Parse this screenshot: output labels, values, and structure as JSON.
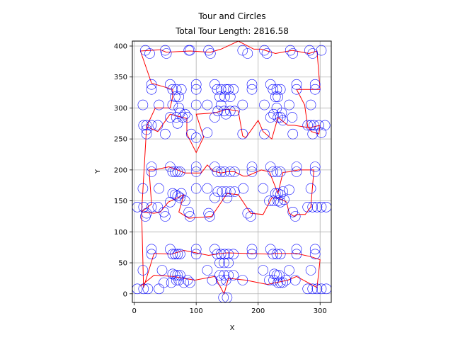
{
  "chart_data": {
    "type": "scatter",
    "title": "Tour and Circles",
    "subtitle": "Total Tour Length: 2816.58",
    "xlabel": "X",
    "ylabel": "Y",
    "xlim": [
      -3,
      318
    ],
    "ylim": [
      -14,
      408
    ],
    "xticks": [
      0,
      100,
      200,
      300
    ],
    "yticks": [
      0,
      50,
      100,
      150,
      200,
      250,
      300,
      350,
      400
    ],
    "grid": true,
    "colors": {
      "circles": "#0000ff",
      "tour": "#ff0000",
      "grid": "#b0b0b0"
    },
    "circles": [
      [
        18,
        393
      ],
      [
        25,
        388
      ],
      [
        50,
        393
      ],
      [
        52,
        388
      ],
      [
        88,
        393
      ],
      [
        90,
        393
      ],
      [
        120,
        393
      ],
      [
        123,
        388
      ],
      [
        175,
        393
      ],
      [
        183,
        388
      ],
      [
        210,
        393
      ],
      [
        214,
        388
      ],
      [
        252,
        393
      ],
      [
        256,
        388
      ],
      [
        283,
        393
      ],
      [
        288,
        388
      ],
      [
        302,
        393
      ],
      [
        28,
        338
      ],
      [
        28,
        330
      ],
      [
        58,
        338
      ],
      [
        62,
        330
      ],
      [
        68,
        330
      ],
      [
        72,
        318
      ],
      [
        76,
        330
      ],
      [
        66,
        318
      ],
      [
        100,
        338
      ],
      [
        100,
        330
      ],
      [
        130,
        338
      ],
      [
        134,
        330
      ],
      [
        140,
        330
      ],
      [
        146,
        318
      ],
      [
        148,
        330
      ],
      [
        138,
        318
      ],
      [
        152,
        330
      ],
      [
        160,
        330
      ],
      [
        155,
        318
      ],
      [
        190,
        338
      ],
      [
        190,
        330
      ],
      [
        220,
        338
      ],
      [
        224,
        330
      ],
      [
        228,
        318
      ],
      [
        230,
        330
      ],
      [
        236,
        330
      ],
      [
        232,
        318
      ],
      [
        262,
        338
      ],
      [
        262,
        330
      ],
      [
        292,
        338
      ],
      [
        292,
        330
      ],
      [
        14,
        305
      ],
      [
        15,
        272
      ],
      [
        20,
        272
      ],
      [
        20,
        265
      ],
      [
        28,
        272
      ],
      [
        20,
        258
      ],
      [
        40,
        305
      ],
      [
        38,
        272
      ],
      [
        50,
        258
      ],
      [
        58,
        285
      ],
      [
        62,
        305
      ],
      [
        68,
        285
      ],
      [
        72,
        300
      ],
      [
        74,
        292
      ],
      [
        78,
        285
      ],
      [
        82,
        290
      ],
      [
        70,
        275
      ],
      [
        86,
        285
      ],
      [
        100,
        305
      ],
      [
        92,
        258
      ],
      [
        100,
        252
      ],
      [
        118,
        305
      ],
      [
        118,
        260
      ],
      [
        130,
        285
      ],
      [
        140,
        305
      ],
      [
        148,
        290
      ],
      [
        135,
        295
      ],
      [
        145,
        295
      ],
      [
        155,
        295
      ],
      [
        162,
        295
      ],
      [
        175,
        305
      ],
      [
        175,
        258
      ],
      [
        210,
        305
      ],
      [
        210,
        258
      ],
      [
        220,
        285
      ],
      [
        225,
        290
      ],
      [
        230,
        300
      ],
      [
        232,
        285
      ],
      [
        236,
        285
      ],
      [
        240,
        280
      ],
      [
        238,
        292
      ],
      [
        250,
        305
      ],
      [
        255,
        285
      ],
      [
        256,
        258
      ],
      [
        280,
        272
      ],
      [
        285,
        272
      ],
      [
        285,
        305
      ],
      [
        288,
        258
      ],
      [
        290,
        272
      ],
      [
        298,
        272
      ],
      [
        302,
        260
      ],
      [
        308,
        272
      ],
      [
        28,
        205
      ],
      [
        28,
        197
      ],
      [
        58,
        205
      ],
      [
        62,
        197
      ],
      [
        66,
        197
      ],
      [
        70,
        197
      ],
      [
        74,
        197
      ],
      [
        62,
        162
      ],
      [
        66,
        160
      ],
      [
        70,
        158
      ],
      [
        74,
        155
      ],
      [
        76,
        162
      ],
      [
        82,
        150
      ],
      [
        100,
        205
      ],
      [
        100,
        197
      ],
      [
        130,
        205
      ],
      [
        134,
        197
      ],
      [
        140,
        197
      ],
      [
        146,
        197
      ],
      [
        155,
        197
      ],
      [
        162,
        197
      ],
      [
        135,
        165
      ],
      [
        142,
        165
      ],
      [
        148,
        165
      ],
      [
        155,
        165
      ],
      [
        162,
        165
      ],
      [
        190,
        205
      ],
      [
        190,
        197
      ],
      [
        220,
        205
      ],
      [
        224,
        197
      ],
      [
        230,
        197
      ],
      [
        236,
        197
      ],
      [
        228,
        162
      ],
      [
        232,
        162
      ],
      [
        236,
        160
      ],
      [
        240,
        165
      ],
      [
        242,
        152
      ],
      [
        262,
        205
      ],
      [
        262,
        197
      ],
      [
        292,
        205
      ],
      [
        292,
        197
      ],
      [
        14,
        170
      ],
      [
        5,
        140
      ],
      [
        15,
        140
      ],
      [
        20,
        130
      ],
      [
        28,
        140
      ],
      [
        38,
        140
      ],
      [
        48,
        132
      ],
      [
        58,
        148
      ],
      [
        50,
        125
      ],
      [
        18,
        125
      ],
      [
        40,
        170
      ],
      [
        88,
        132
      ],
      [
        90,
        125
      ],
      [
        100,
        170
      ],
      [
        118,
        170
      ],
      [
        120,
        130
      ],
      [
        122,
        125
      ],
      [
        130,
        155
      ],
      [
        150,
        155
      ],
      [
        176,
        170
      ],
      [
        183,
        130
      ],
      [
        188,
        125
      ],
      [
        208,
        170
      ],
      [
        218,
        150
      ],
      [
        225,
        150
      ],
      [
        232,
        150
      ],
      [
        236,
        148
      ],
      [
        250,
        168
      ],
      [
        256,
        132
      ],
      [
        260,
        125
      ],
      [
        280,
        140
      ],
      [
        285,
        170
      ],
      [
        288,
        140
      ],
      [
        295,
        140
      ],
      [
        302,
        140
      ],
      [
        310,
        140
      ],
      [
        28,
        72
      ],
      [
        28,
        64
      ],
      [
        58,
        72
      ],
      [
        62,
        64
      ],
      [
        66,
        64
      ],
      [
        70,
        64
      ],
      [
        74,
        64
      ],
      [
        62,
        32
      ],
      [
        66,
        30
      ],
      [
        70,
        30
      ],
      [
        74,
        30
      ],
      [
        100,
        72
      ],
      [
        100,
        64
      ],
      [
        130,
        72
      ],
      [
        134,
        64
      ],
      [
        140,
        64
      ],
      [
        146,
        64
      ],
      [
        152,
        64
      ],
      [
        160,
        64
      ],
      [
        138,
        50
      ],
      [
        145,
        50
      ],
      [
        152,
        50
      ],
      [
        138,
        30
      ],
      [
        145,
        30
      ],
      [
        152,
        30
      ],
      [
        160,
        30
      ],
      [
        190,
        72
      ],
      [
        190,
        64
      ],
      [
        220,
        72
      ],
      [
        224,
        64
      ],
      [
        230,
        64
      ],
      [
        236,
        64
      ],
      [
        226,
        32
      ],
      [
        230,
        30
      ],
      [
        234,
        30
      ],
      [
        262,
        72
      ],
      [
        262,
        64
      ],
      [
        292,
        72
      ],
      [
        292,
        64
      ],
      [
        14,
        38
      ],
      [
        5,
        8
      ],
      [
        15,
        8
      ],
      [
        22,
        8
      ],
      [
        40,
        8
      ],
      [
        45,
        38
      ],
      [
        48,
        18
      ],
      [
        60,
        18
      ],
      [
        68,
        22
      ],
      [
        72,
        22
      ],
      [
        80,
        18
      ],
      [
        86,
        22
      ],
      [
        90,
        18
      ],
      [
        118,
        38
      ],
      [
        126,
        22
      ],
      [
        140,
        22
      ],
      [
        148,
        22
      ],
      [
        175,
        22
      ],
      [
        150,
        -6
      ],
      [
        144,
        -6
      ],
      [
        208,
        38
      ],
      [
        218,
        22
      ],
      [
        225,
        22
      ],
      [
        232,
        18
      ],
      [
        236,
        18
      ],
      [
        240,
        18
      ],
      [
        245,
        22
      ],
      [
        250,
        38
      ],
      [
        260,
        22
      ],
      [
        280,
        8
      ],
      [
        285,
        38
      ],
      [
        288,
        8
      ],
      [
        295,
        8
      ],
      [
        302,
        8
      ],
      [
        310,
        8
      ]
    ],
    "tour": [
      [
        10,
        12
      ],
      [
        32,
        30
      ],
      [
        62,
        28
      ],
      [
        98,
        22
      ],
      [
        130,
        28
      ],
      [
        145,
        0
      ],
      [
        152,
        25
      ],
      [
        180,
        22
      ],
      [
        215,
        15
      ],
      [
        248,
        22
      ],
      [
        262,
        28
      ],
      [
        295,
        10
      ],
      [
        300,
        55
      ],
      [
        285,
        60
      ],
      [
        262,
        65
      ],
      [
        230,
        65
      ],
      [
        218,
        64
      ],
      [
        150,
        66
      ],
      [
        140,
        65
      ],
      [
        120,
        62
      ],
      [
        80,
        70
      ],
      [
        60,
        64
      ],
      [
        32,
        65
      ],
      [
        15,
        10
      ],
      [
        12,
        132
      ],
      [
        32,
        130
      ],
      [
        42,
        132
      ],
      [
        55,
        148
      ],
      [
        80,
        160
      ],
      [
        72,
        132
      ],
      [
        88,
        122
      ],
      [
        125,
        125
      ],
      [
        150,
        162
      ],
      [
        168,
        160
      ],
      [
        188,
        130
      ],
      [
        208,
        128
      ],
      [
        222,
        155
      ],
      [
        232,
        155
      ],
      [
        246,
        148
      ],
      [
        250,
        130
      ],
      [
        258,
        125
      ],
      [
        262,
        128
      ],
      [
        276,
        128
      ],
      [
        285,
        140
      ],
      [
        290,
        200
      ],
      [
        265,
        200
      ],
      [
        250,
        197
      ],
      [
        240,
        196
      ],
      [
        232,
        162
      ],
      [
        218,
        197
      ],
      [
        205,
        200
      ],
      [
        182,
        190
      ],
      [
        176,
        190
      ],
      [
        162,
        197
      ],
      [
        150,
        197
      ],
      [
        140,
        195
      ],
      [
        128,
        198
      ],
      [
        118,
        208
      ],
      [
        108,
        195
      ],
      [
        82,
        195
      ],
      [
        70,
        200
      ],
      [
        56,
        205
      ],
      [
        32,
        200
      ],
      [
        24,
        200
      ],
      [
        28,
        145
      ],
      [
        12,
        132
      ],
      [
        20,
        270
      ],
      [
        38,
        262
      ],
      [
        58,
        290
      ],
      [
        85,
        283
      ],
      [
        85,
        258
      ],
      [
        100,
        228
      ],
      [
        112,
        253
      ],
      [
        100,
        290
      ],
      [
        130,
        292
      ],
      [
        150,
        298
      ],
      [
        168,
        295
      ],
      [
        175,
        255
      ],
      [
        180,
        252
      ],
      [
        200,
        280
      ],
      [
        208,
        262
      ],
      [
        222,
        250
      ],
      [
        232,
        285
      ],
      [
        248,
        272
      ],
      [
        258,
        272
      ],
      [
        283,
        268
      ],
      [
        300,
        272
      ],
      [
        298,
        258
      ],
      [
        286,
        262
      ],
      [
        280,
        270
      ],
      [
        275,
        305
      ],
      [
        262,
        330
      ],
      [
        300,
        330
      ],
      [
        295,
        392
      ],
      [
        282,
        388
      ],
      [
        255,
        393
      ],
      [
        228,
        388
      ],
      [
        205,
        395
      ],
      [
        193,
        395
      ],
      [
        168,
        408
      ],
      [
        140,
        395
      ],
      [
        123,
        390
      ],
      [
        90,
        392
      ],
      [
        52,
        390
      ],
      [
        42,
        394
      ],
      [
        10,
        392
      ],
      [
        28,
        340
      ],
      [
        62,
        330
      ],
      [
        62,
        318
      ],
      [
        58,
        300
      ],
      [
        34,
        300
      ],
      [
        20,
        270
      ]
    ]
  }
}
